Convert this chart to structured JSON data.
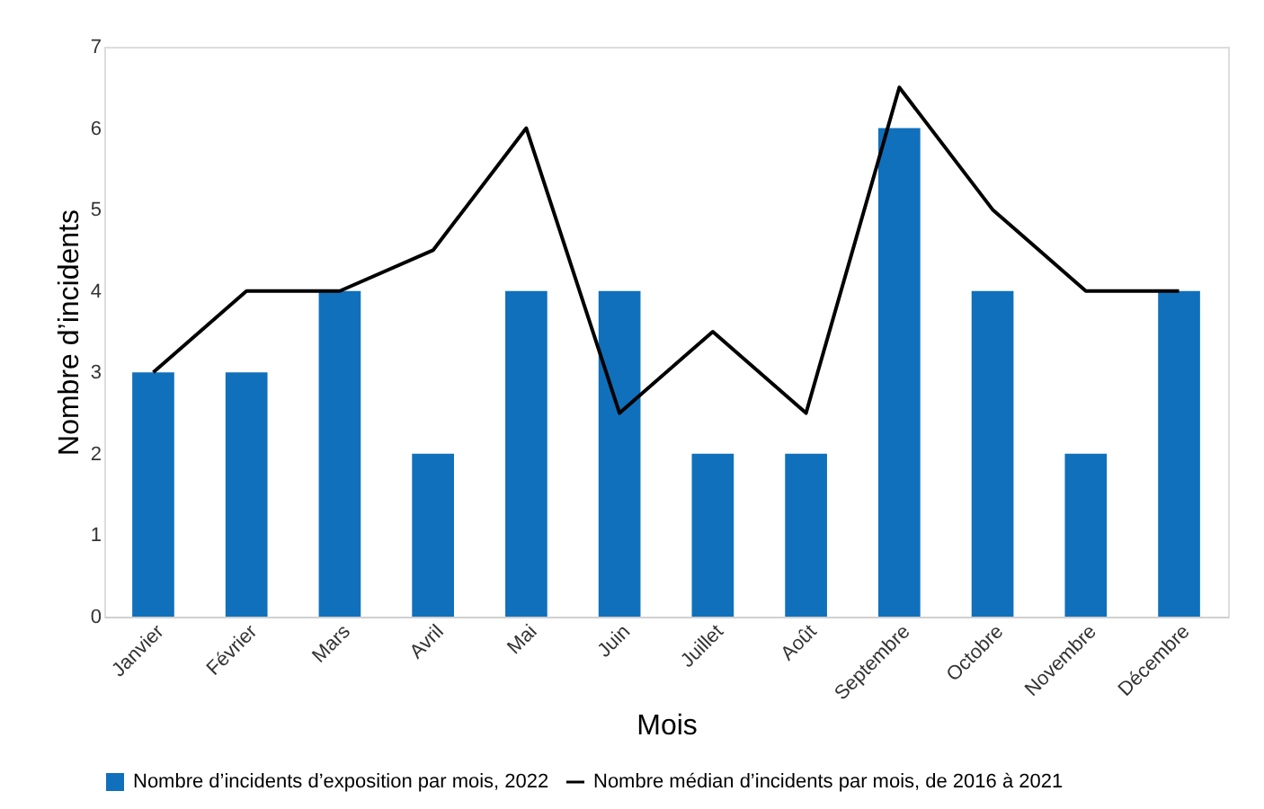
{
  "chart_data": {
    "type": "bar",
    "xlabel": "Mois",
    "ylabel": "Nombre d’incidents",
    "categories": [
      "Janvier",
      "Février",
      "Mars",
      "Avril",
      "Mai",
      "Juin",
      "Juillet",
      "Août",
      "Septembre",
      "Octobre",
      "Novembre",
      "Décembre"
    ],
    "series": [
      {
        "name": "Nombre d’incidents d’exposition par mois, 2022",
        "color": "#1070bb",
        "values": [
          3,
          3,
          4,
          2,
          4,
          4,
          2,
          2,
          6,
          4,
          2,
          4
        ]
      },
      {
        "name": "Nombre médian d’incidents par mois, de 2016 à 2021",
        "type": "line",
        "color": "#000000",
        "values": [
          3,
          4,
          4,
          4.5,
          6,
          2.5,
          3.5,
          2.5,
          6.5,
          5,
          4,
          4
        ]
      }
    ],
    "ylim": [
      0,
      7
    ],
    "yticks": [
      0,
      1,
      2,
      3,
      4,
      5,
      6,
      7
    ],
    "grid": false,
    "legend": "bottom",
    "marker": "none",
    "line_style": "solid"
  }
}
